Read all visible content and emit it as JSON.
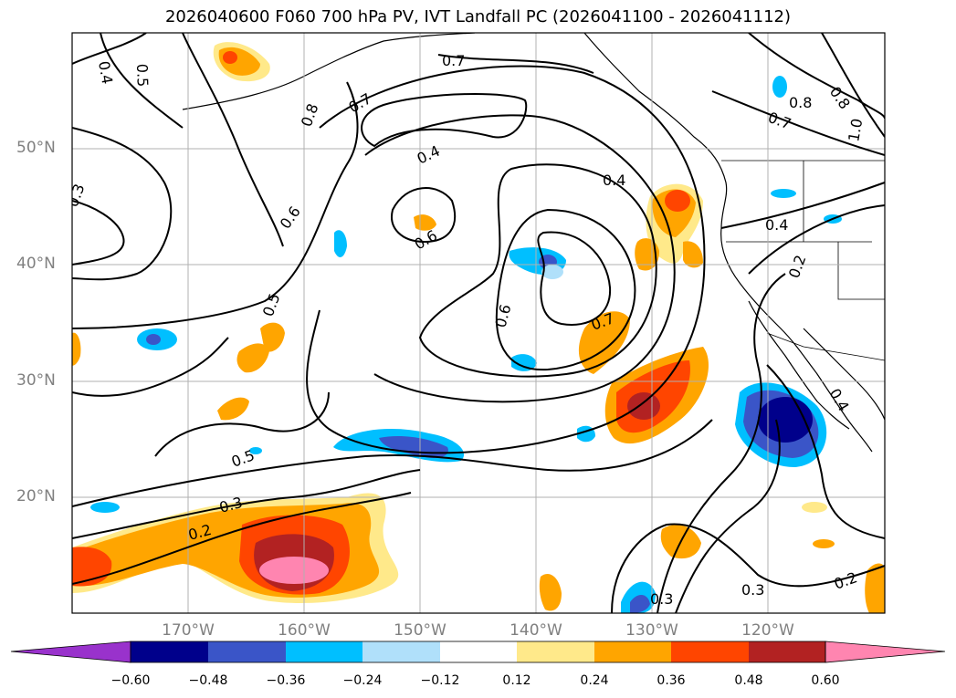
{
  "title": "2026040600 F060 700 hPa PV, IVT Landfall PC (2026041100 - 2026041112)",
  "axes": {
    "lat_labels": [
      "50°N",
      "40°N",
      "30°N",
      "20°N"
    ],
    "lon_labels": [
      "170°W",
      "160°W",
      "150°W",
      "140°W",
      "130°W",
      "120°W"
    ]
  },
  "contour_labels": [
    "0.4",
    "0.5",
    "0.7",
    "0.7",
    "0.8",
    "0.7",
    "0.8",
    "0.8",
    "1.0",
    "0.4",
    "0.4",
    "0.3",
    "0.4",
    "0.6",
    "0.6",
    "0.5",
    "0.6",
    "0.7",
    "0.2",
    "0.5",
    "0.3",
    "0.2",
    "0.4",
    "0.3",
    "0.3",
    "0.2"
  ],
  "colorbar": {
    "ticks": [
      "−0.60",
      "−0.48",
      "−0.36",
      "−0.24",
      "−0.12",
      "0.12",
      "0.24",
      "0.36",
      "0.48",
      "0.60"
    ],
    "colors": [
      "#9932cc",
      "#00008b",
      "#3a55c8",
      "#00bfff",
      "#b0e0fa",
      "#ffffff",
      "#ffe98a",
      "#ffa500",
      "#ff4500",
      "#b22222",
      "#ff85b0"
    ]
  },
  "colors": {
    "grid": "#b0b0b0",
    "tick_text": "#808080",
    "contour": "#000000"
  }
}
